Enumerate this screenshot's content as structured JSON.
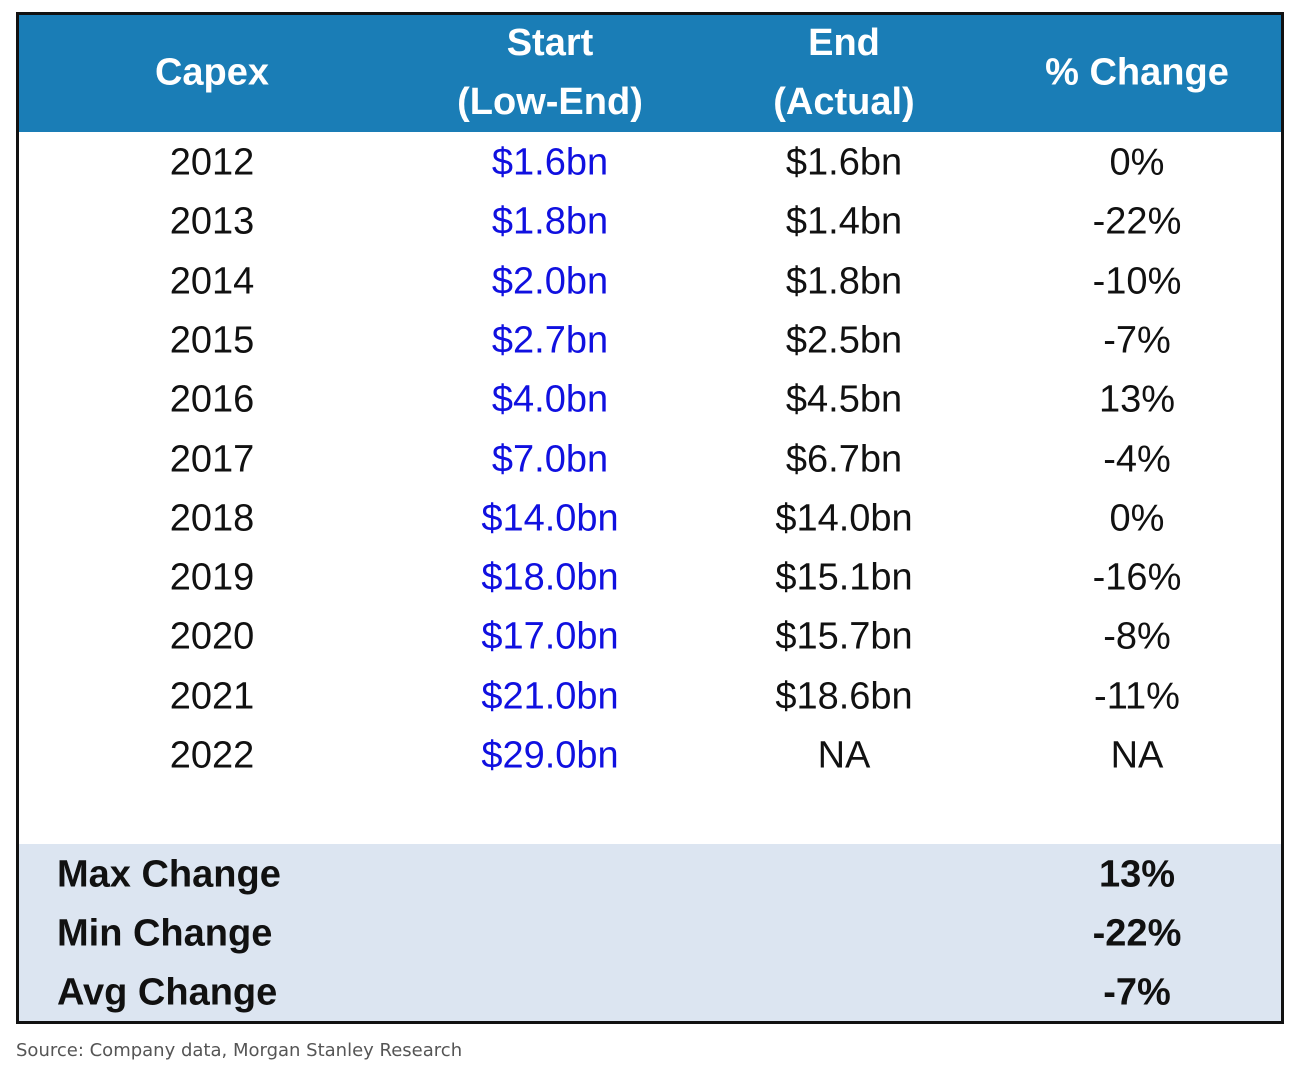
{
  "table": {
    "header": [
      [
        "Capex"
      ],
      [
        "Start",
        "(Low-End)"
      ],
      [
        "End",
        "(Actual)"
      ],
      [
        "% Change"
      ]
    ],
    "rows": [
      [
        "2012",
        "$1.6bn",
        "$1.6bn",
        "0%"
      ],
      [
        "2013",
        "$1.8bn",
        "$1.4bn",
        "-22%"
      ],
      [
        "2014",
        "$2.0bn",
        "$1.8bn",
        "-10%"
      ],
      [
        "2015",
        "$2.7bn",
        "$2.5bn",
        "-7%"
      ],
      [
        "2016",
        "$4.0bn",
        "$4.5bn",
        "13%"
      ],
      [
        "2017",
        "$7.0bn",
        "$6.7bn",
        "-4%"
      ],
      [
        "2018",
        "$14.0bn",
        "$14.0bn",
        "0%"
      ],
      [
        "2019",
        "$18.0bn",
        "$15.1bn",
        "-16%"
      ],
      [
        "2020",
        "$17.0bn",
        "$15.7bn",
        "-8%"
      ],
      [
        "2021",
        "$21.0bn",
        "$18.6bn",
        "-11%"
      ],
      [
        "2022",
        "$29.0bn",
        "NA",
        "NA"
      ]
    ],
    "summary": [
      [
        "Max Change",
        "13%"
      ],
      [
        "Min Change",
        "-22%"
      ],
      [
        "Avg Change",
        "-7%"
      ]
    ]
  },
  "source": "Source: Company data, Morgan Stanley Research"
}
